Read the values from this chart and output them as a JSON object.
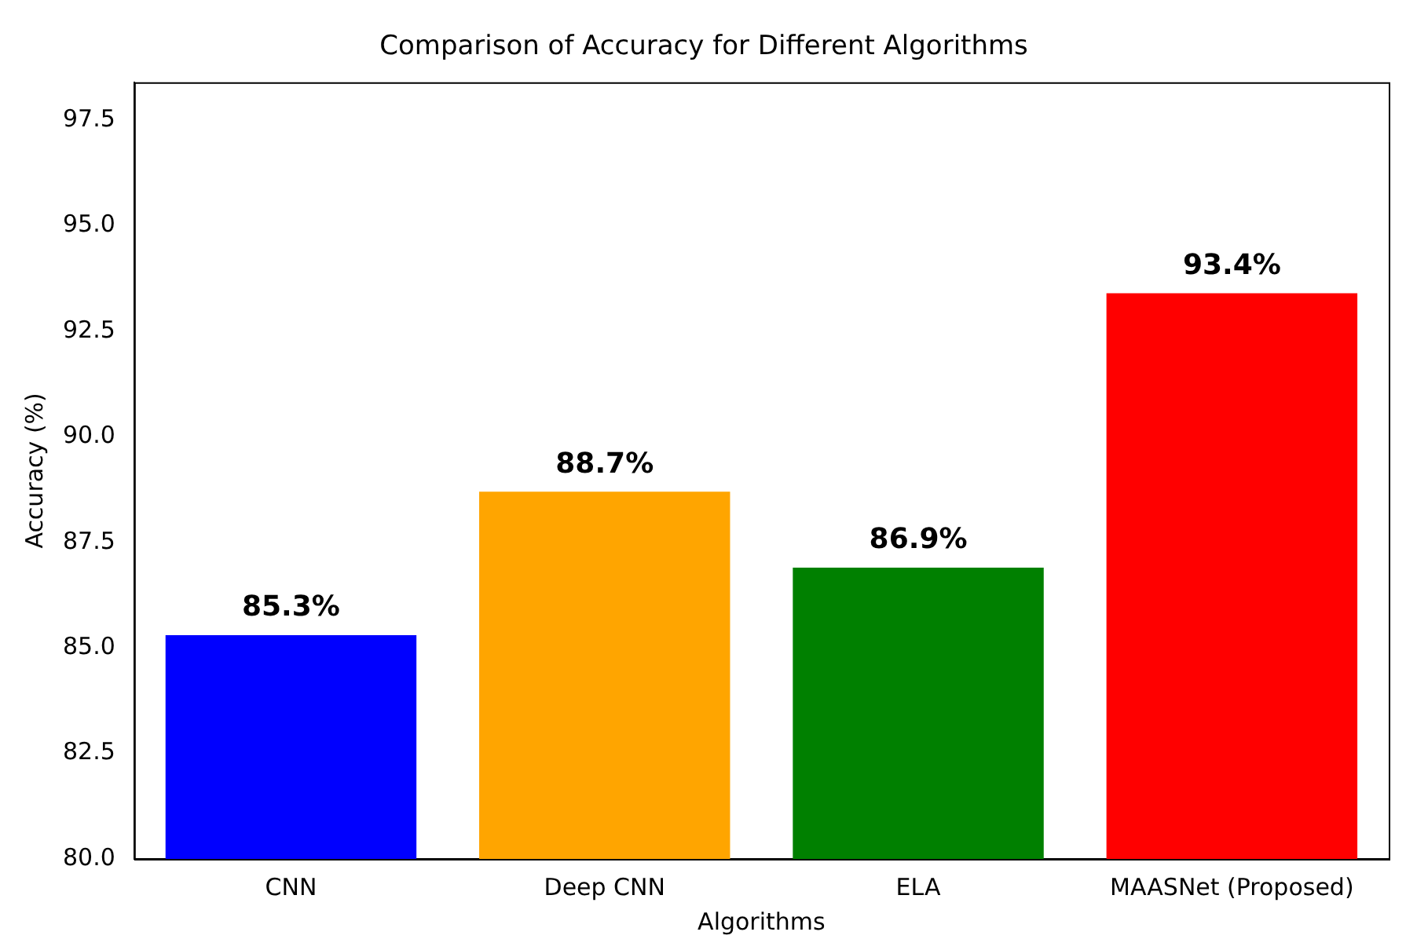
{
  "chart_data": {
    "type": "bar",
    "title": "Comparison of Accuracy for Different Algorithms",
    "xlabel": "Algorithms",
    "ylabel": "Accuracy (%)",
    "categories": [
      "CNN",
      "Deep CNN",
      "ELA",
      "MAASNet (Proposed)"
    ],
    "values": [
      85.3,
      88.7,
      86.9,
      93.4
    ],
    "colors": [
      "#0000ff",
      "#ffa500",
      "#008000",
      "#ff0000"
    ],
    "value_labels": [
      "85.3%",
      "88.7%",
      "86.9%",
      "93.4%"
    ],
    "ylim": [
      80,
      98.4
    ],
    "yticks": [
      {
        "value": 80,
        "label": "80.0"
      },
      {
        "value": 82.5,
        "label": "82.5"
      },
      {
        "value": 85,
        "label": "85.0"
      },
      {
        "value": 87.5,
        "label": "87.5"
      },
      {
        "value": 90,
        "label": "90.0"
      },
      {
        "value": 92.5,
        "label": "92.5"
      },
      {
        "value": 95,
        "label": "95.0"
      },
      {
        "value": 97.5,
        "label": "97.5"
      }
    ],
    "grid": false,
    "legend": false
  }
}
